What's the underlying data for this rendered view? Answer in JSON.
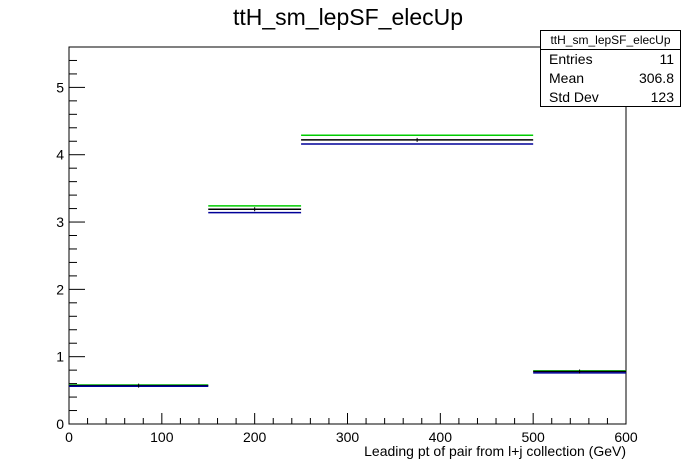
{
  "title": "ttH_sm_lepSF_elecUp",
  "stats": {
    "name": "ttH_sm_lepSF_elecUp",
    "rows": [
      {
        "label": "Entries",
        "value": "11"
      },
      {
        "label": "Mean",
        "value": "306.8"
      },
      {
        "label": "Std Dev",
        "value": "123"
      }
    ]
  },
  "chart_data": {
    "type": "line",
    "title": "ttH_sm_lepSF_elecUp",
    "xlabel": "Leading pt of pair from l+j collection (GeV)",
    "ylabel": "",
    "xlim": [
      0,
      600
    ],
    "ylim": [
      0,
      5.6
    ],
    "xticks": [
      0,
      100,
      200,
      300,
      400,
      500,
      600
    ],
    "yticks": [
      0,
      1,
      2,
      3,
      4,
      5
    ],
    "bins": [
      [
        0,
        150
      ],
      [
        150,
        250
      ],
      [
        250,
        500
      ],
      [
        500,
        600
      ]
    ],
    "series": [
      {
        "color": "#00cc00",
        "values": [
          0.58,
          3.24,
          4.29,
          0.79
        ]
      },
      {
        "color": "#000000",
        "values": [
          0.57,
          3.19,
          4.22,
          0.78
        ]
      },
      {
        "color": "#000099",
        "values": [
          0.56,
          3.14,
          4.16,
          0.76
        ]
      }
    ],
    "grid": false
  }
}
